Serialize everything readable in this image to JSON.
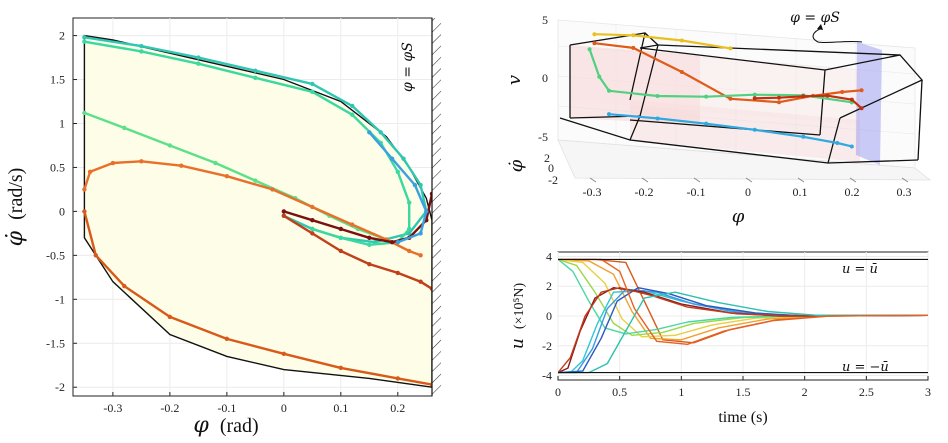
{
  "chart_data": [
    {
      "type": "line",
      "name": "phase-portrait",
      "xlabel_sym": "φ",
      "xlabel_unit": "(rad)",
      "ylabel_sym": "φ̇",
      "ylabel_unit": "(rad/s)",
      "xlim": [
        -0.37,
        0.26
      ],
      "ylim": [
        -2.1,
        2.2
      ],
      "xticks": [
        -0.3,
        -0.2,
        -0.1,
        0,
        0.1,
        0.2
      ],
      "xtick_labels": [
        "-0.3",
        "-0.2",
        "-0.1",
        "0",
        "0.1",
        "0.2"
      ],
      "yticks": [
        -2,
        -1.5,
        -1,
        -0.5,
        0,
        0.5,
        1,
        1.5,
        2
      ],
      "ytick_labels": [
        "-2",
        "-1.5",
        "-1",
        "-0.5",
        "0",
        "0.5",
        "1",
        "1.5",
        "2"
      ],
      "boundary_label": "φ = φS",
      "boundary_x": 0.26,
      "region": {
        "upper": [
          [
            -0.35,
            2.0
          ],
          [
            -0.3,
            1.95
          ],
          [
            -0.2,
            1.8
          ],
          [
            -0.1,
            1.65
          ],
          [
            0.0,
            1.5
          ],
          [
            0.1,
            1.25
          ],
          [
            0.18,
            0.85
          ],
          [
            0.22,
            0.5
          ],
          [
            0.25,
            0.15
          ],
          [
            0.26,
            -0.1
          ]
        ],
        "lower": [
          [
            0.26,
            -2.0
          ],
          [
            0.15,
            -1.9
          ],
          [
            0.0,
            -1.8
          ],
          [
            -0.1,
            -1.65
          ],
          [
            -0.2,
            -1.4
          ],
          [
            -0.3,
            -0.8
          ],
          [
            -0.35,
            -0.3
          ]
        ]
      },
      "series": [
        {
          "name": "traj-1",
          "color": "#2fc7b2",
          "x": [
            -0.35,
            -0.25,
            -0.15,
            -0.05,
            0.05,
            0.12,
            0.17,
            0.21,
            0.24,
            0.25,
            0.22,
            0.16,
            0.1,
            0.05,
            0.0
          ],
          "y": [
            1.98,
            1.88,
            1.75,
            1.6,
            1.45,
            1.2,
            0.9,
            0.6,
            0.3,
            0.0,
            -0.25,
            -0.35,
            -0.3,
            -0.2,
            -0.05
          ]
        },
        {
          "name": "traj-2",
          "color": "#3bd9a0",
          "x": [
            -0.35,
            -0.25,
            -0.15,
            -0.05,
            0.05,
            0.12,
            0.17,
            0.2,
            0.22,
            0.22,
            0.2,
            0.15,
            0.1,
            0.05
          ],
          "y": [
            1.93,
            1.82,
            1.68,
            1.52,
            1.36,
            1.1,
            0.78,
            0.45,
            0.1,
            -0.2,
            -0.35,
            -0.38,
            -0.3,
            -0.2
          ]
        },
        {
          "name": "traj-3",
          "color": "#5de08a",
          "x": [
            -0.35,
            -0.28,
            -0.2,
            -0.12,
            -0.05,
            0.02,
            0.08,
            0.13,
            0.18
          ],
          "y": [
            1.12,
            0.95,
            0.75,
            0.55,
            0.35,
            0.15,
            -0.05,
            -0.2,
            -0.32
          ]
        },
        {
          "name": "traj-4",
          "color": "#e8702a",
          "x": [
            -0.35,
            -0.34,
            -0.3,
            -0.25,
            -0.18,
            -0.1,
            -0.02,
            0.05,
            0.12,
            0.18,
            0.22,
            0.24
          ],
          "y": [
            0.25,
            0.45,
            0.55,
            0.57,
            0.52,
            0.4,
            0.25,
            0.05,
            -0.15,
            -0.32,
            -0.45,
            -0.5
          ]
        },
        {
          "name": "traj-5",
          "color": "#d85a1a",
          "x": [
            -0.35,
            -0.33,
            -0.28,
            -0.2,
            -0.1,
            0.0,
            0.1,
            0.2,
            0.26
          ],
          "y": [
            0.0,
            -0.5,
            -0.85,
            -1.2,
            -1.45,
            -1.62,
            -1.78,
            -1.9,
            -1.97
          ]
        },
        {
          "name": "traj-6",
          "color": "#c0401a",
          "x": [
            0.0,
            0.05,
            0.1,
            0.15,
            0.2,
            0.24,
            0.26
          ],
          "y": [
            -0.05,
            -0.25,
            -0.45,
            -0.6,
            -0.7,
            -0.8,
            -0.88
          ]
        },
        {
          "name": "traj-7",
          "color": "#7a1010",
          "x": [
            0.0,
            0.05,
            0.1,
            0.15,
            0.19,
            0.22,
            0.25,
            0.26
          ],
          "y": [
            0.0,
            -0.1,
            -0.2,
            -0.3,
            -0.35,
            -0.3,
            -0.1,
            0.2
          ]
        },
        {
          "name": "traj-8",
          "color": "#3aa0e0",
          "x": [
            0.15,
            0.19,
            0.23,
            0.25,
            0.24,
            0.2
          ],
          "y": [
            0.9,
            0.6,
            0.3,
            0.0,
            -0.25,
            -0.35
          ]
        }
      ]
    },
    {
      "type": "line",
      "name": "3d-state-plot",
      "xlabel_sym": "φ",
      "ylabel_sym": "v",
      "zlabel_sym": "φ̇",
      "xlim": [
        -0.37,
        0.33
      ],
      "xticks": [
        -0.3,
        -0.2,
        -0.1,
        0,
        0.1,
        0.2,
        0.3
      ],
      "xtick_labels": [
        "-0.3",
        "-0.2",
        "-0.1",
        "0",
        "0.1",
        "0.2",
        "0.3"
      ],
      "vticks": [
        5,
        0,
        -5
      ],
      "vtick_labels": [
        "5",
        "0",
        "-5"
      ],
      "dticks": [
        2,
        0,
        -2
      ],
      "dtick_labels": [
        "2",
        "0",
        "-2"
      ],
      "annotation": "φ = φS",
      "series": [
        {
          "name": "traj-orange",
          "color": "#e05a1a",
          "x": [
            -0.33,
            -0.25,
            -0.15,
            -0.05,
            0.05,
            0.12,
            0.18,
            0.22
          ],
          "v": [
            4.2,
            3.9,
            1.5,
            -1.2,
            -1.3,
            -0.4,
            0.2,
            0.5
          ]
        },
        {
          "name": "traj-yellow",
          "color": "#e8c020",
          "x": [
            -0.33,
            -0.25,
            -0.15,
            -0.05
          ],
          "v": [
            5.2,
            5.3,
            5.0,
            4.4
          ]
        },
        {
          "name": "traj-green",
          "color": "#50d080",
          "x": [
            -0.34,
            -0.32,
            -0.3,
            -0.2,
            -0.1,
            0.0,
            0.1,
            0.2
          ],
          "v": [
            3.5,
            0.5,
            -1.0,
            -1.3,
            -1.1,
            -0.6,
            -0.4,
            -0.9
          ]
        },
        {
          "name": "traj-blue",
          "color": "#30a8e0",
          "x": [
            -0.3,
            -0.2,
            -0.1,
            0.0,
            0.1,
            0.17,
            0.2
          ],
          "v": [
            -3.6,
            -3.8,
            -4.1,
            -4.5,
            -5.0,
            -5.5,
            -5.8
          ]
        },
        {
          "name": "traj-red",
          "color": "#c03010",
          "x": [
            0.0,
            0.05,
            0.1,
            0.15,
            0.2,
            0.22
          ],
          "v": [
            -1.0,
            -0.8,
            -0.5,
            -0.3,
            -0.6,
            -1.5
          ]
        }
      ]
    },
    {
      "type": "line",
      "name": "control-input",
      "xlabel": "time (s)",
      "ylabel_sym": "u",
      "ylabel_unit": "(×10⁵N)",
      "xlim": [
        0,
        3
      ],
      "ylim": [
        -4.3,
        4.3
      ],
      "xticks": [
        0,
        0.5,
        1,
        1.5,
        2,
        2.5,
        3
      ],
      "xtick_labels": [
        "0",
        "0.5",
        "1",
        "1.5",
        "2",
        "2.5",
        "3"
      ],
      "yticks": [
        -4,
        -2,
        0,
        2,
        4
      ],
      "ytick_labels": [
        "-4",
        "-2",
        "0",
        "2",
        "4"
      ],
      "upper_bound": 3.8,
      "upper_label": "u = ū",
      "lower_bound": -3.8,
      "lower_label": "u = −ū",
      "series": [
        {
          "name": "u-1",
          "color": "#d85a1a",
          "x": [
            0,
            0.3,
            0.55,
            0.7,
            0.85,
            1.1,
            1.4,
            1.8,
            2.2,
            3
          ],
          "y": [
            3.8,
            3.8,
            3.6,
            1.0,
            -1.6,
            -1.8,
            -0.9,
            -0.2,
            0.0,
            0.05
          ]
        },
        {
          "name": "u-2",
          "color": "#f0a030",
          "x": [
            0,
            0.25,
            0.45,
            0.6,
            0.75,
            1.0,
            1.3,
            1.7,
            2.1,
            3
          ],
          "y": [
            3.8,
            3.7,
            2.8,
            0.3,
            -1.5,
            -1.6,
            -0.8,
            -0.2,
            0.0,
            0.05
          ]
        },
        {
          "name": "u-3",
          "color": "#e8d040",
          "x": [
            0,
            0.2,
            0.38,
            0.52,
            0.68,
            0.95,
            1.25,
            1.6,
            2.0,
            3
          ],
          "y": [
            3.8,
            3.6,
            2.2,
            -0.2,
            -1.4,
            -1.3,
            -0.6,
            -0.15,
            0.0,
            0.05
          ]
        },
        {
          "name": "u-4",
          "color": "#9ad84a",
          "x": [
            0,
            0.15,
            0.3,
            0.45,
            0.6,
            0.85,
            1.1,
            1.5,
            1.9,
            3
          ],
          "y": [
            3.8,
            3.4,
            1.6,
            -0.5,
            -1.3,
            -1.1,
            -0.5,
            -0.1,
            0.0,
            0.05
          ]
        },
        {
          "name": "u-5",
          "color": "#4ad8a0",
          "x": [
            0,
            0.12,
            0.25,
            0.38,
            0.55,
            0.8,
            1.05,
            1.4,
            1.8,
            3
          ],
          "y": [
            3.8,
            3.0,
            1.0,
            -0.8,
            -1.2,
            -0.9,
            -0.4,
            -0.1,
            0.0,
            0.05
          ]
        },
        {
          "name": "u-6",
          "color": "#2fc7d0",
          "x": [
            0,
            0.1,
            0.2,
            0.32,
            0.45,
            0.7,
            1.0,
            1.4,
            1.8,
            3
          ],
          "y": [
            -3.8,
            -3.8,
            -3.0,
            -0.5,
            1.6,
            1.7,
            1.0,
            0.3,
            0.05,
            0.05
          ]
        },
        {
          "name": "u-7",
          "color": "#3a9ae8",
          "x": [
            0,
            0.15,
            0.28,
            0.4,
            0.55,
            0.8,
            1.1,
            1.5,
            1.9,
            3
          ],
          "y": [
            -3.8,
            -3.8,
            -2.2,
            0.5,
            1.8,
            1.6,
            0.8,
            0.2,
            0.0,
            0.05
          ]
        },
        {
          "name": "u-8",
          "color": "#2a5ac0",
          "x": [
            0,
            0.2,
            0.35,
            0.48,
            0.65,
            0.9,
            1.2,
            1.6,
            2.0,
            3
          ],
          "y": [
            -3.8,
            -3.7,
            -1.5,
            1.0,
            1.9,
            1.5,
            0.7,
            0.2,
            0.0,
            0.05
          ]
        },
        {
          "name": "u-9",
          "color": "#8b1a1a",
          "x": [
            0,
            0.08,
            0.18,
            0.3,
            0.45,
            0.7,
            1.0,
            1.4,
            1.8,
            3
          ],
          "y": [
            -3.8,
            -3.5,
            -1.0,
            1.2,
            1.9,
            1.6,
            0.8,
            0.2,
            0.0,
            0.05
          ]
        },
        {
          "name": "u-10",
          "color": "#c03a1a",
          "x": [
            0,
            0.1,
            0.22,
            0.35,
            0.5,
            0.75,
            1.05,
            1.45,
            1.85,
            3
          ],
          "y": [
            -3.8,
            -2.8,
            0.0,
            1.6,
            1.9,
            1.4,
            0.6,
            0.15,
            0.0,
            0.05
          ]
        },
        {
          "name": "u-11",
          "color": "#2ec0b0",
          "x": [
            0,
            0.25,
            0.4,
            0.55,
            0.7,
            0.95,
            1.3,
            1.7,
            2.1,
            3
          ],
          "y": [
            -3.8,
            -3.8,
            -3.2,
            -1.0,
            1.2,
            1.6,
            0.9,
            0.3,
            0.05,
            0.05
          ]
        },
        {
          "name": "u-12",
          "color": "#e86020",
          "x": [
            0,
            0.35,
            0.5,
            0.62,
            0.8,
            1.05,
            1.35,
            1.75,
            2.2,
            3
          ],
          "y": [
            3.8,
            3.8,
            3.0,
            0.5,
            -1.7,
            -1.9,
            -1.0,
            -0.3,
            0.0,
            0.05
          ]
        }
      ]
    }
  ]
}
